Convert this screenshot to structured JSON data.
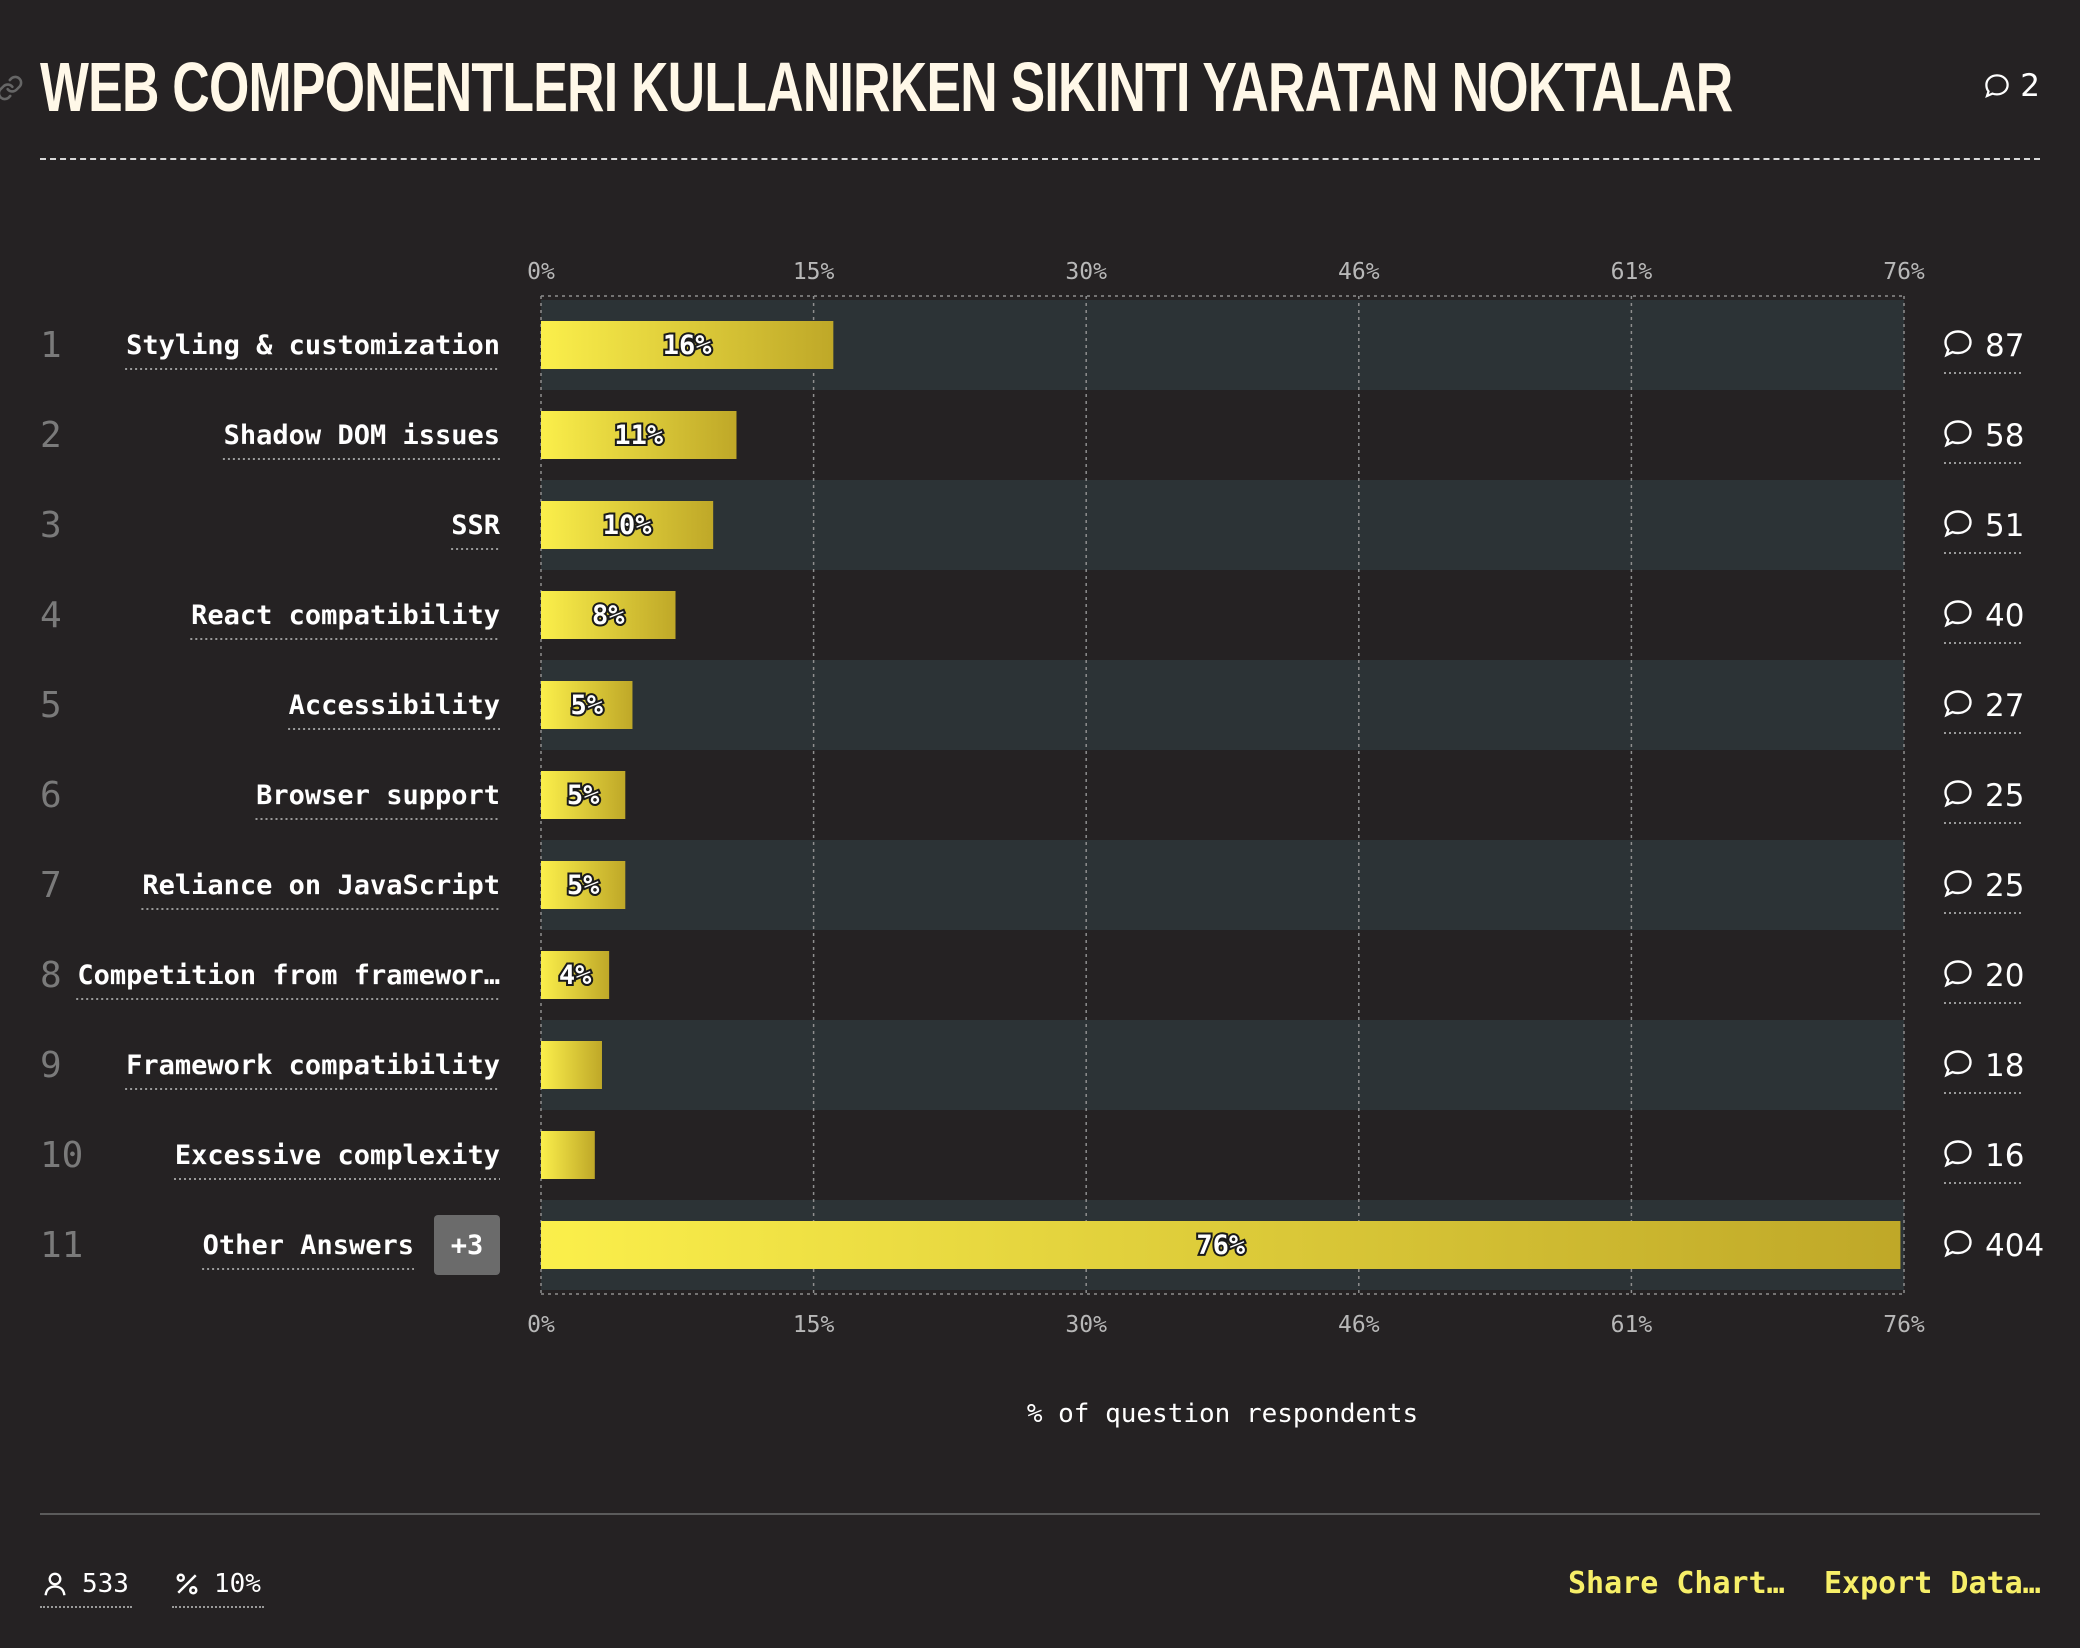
{
  "header": {
    "title": "WEB COMPONENTLERI KULLANIRKEN SIKINTI YARATAN NOKTALAR",
    "comment_count": "2",
    "icons": {
      "link": "link-icon",
      "comment": "comment-bubble-icon"
    }
  },
  "chart_data": {
    "type": "bar",
    "orientation": "horizontal",
    "title": "WEB COMPONENTLERI KULLANIRKEN SIKINTI YARATAN NOKTALAR",
    "xlabel": "% of question respondents",
    "ylabel": "",
    "xlim": [
      0,
      76
    ],
    "x_ticks": [
      "0%",
      "15%",
      "30%",
      "46%",
      "61%",
      "76%"
    ],
    "grid": true,
    "ranks": [
      "1",
      "2",
      "3",
      "4",
      "5",
      "6",
      "7",
      "8",
      "9",
      "10",
      "11"
    ],
    "categories": [
      "Styling & customization",
      "Shadow DOM issues",
      "SSR",
      "React compatibility",
      "Accessibility",
      "Browser support",
      "Reliance on JavaScript",
      "Competition from framewor…",
      "Framework compatibility",
      "Excessive complexity",
      "Other Answers"
    ],
    "values": [
      16.3,
      10.9,
      9.6,
      7.5,
      5.1,
      4.7,
      4.7,
      3.8,
      3.4,
      3.0,
      75.8
    ],
    "data_labels": [
      "16%",
      "11%",
      "10%",
      "8%",
      "5%",
      "5%",
      "5%",
      "4%",
      "",
      "",
      "76%"
    ],
    "comment_counts": [
      "87",
      "58",
      "51",
      "40",
      "27",
      "25",
      "25",
      "20",
      "18",
      "16",
      "404"
    ],
    "other_answers_badge": "+3",
    "colors": {
      "bar_start": "#fbef4b",
      "bar_end": "#bfa828",
      "band_odd": "#2c3336",
      "band_even": "#252223",
      "rank_text": "#7a7a7a",
      "axis_text": "#b8b8b8",
      "badge": "#6b6b6b"
    }
  },
  "footer": {
    "respondents": "533",
    "percent": "10%",
    "share_label": "Share Chart…",
    "export_label": "Export Data…",
    "icons": {
      "respondents": "user-icon",
      "percent": "percent-icon"
    }
  }
}
